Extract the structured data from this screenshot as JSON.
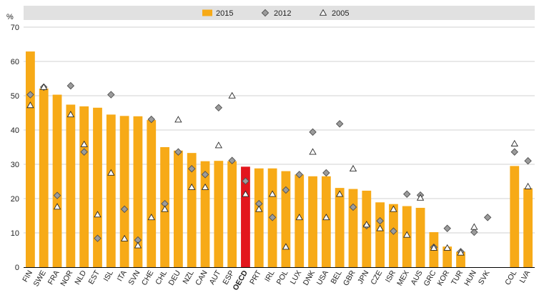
{
  "chart_data": {
    "type": "bar",
    "ylabel": "%",
    "ylim": [
      0,
      70
    ],
    "yticks": [
      "0",
      "10",
      "20",
      "30",
      "40",
      "50",
      "60",
      "70"
    ],
    "grid": true,
    "legend_position": "top",
    "categories": [
      "FIN",
      "SWE",
      "FRA",
      "NOR",
      "NLD",
      "EST",
      "ISL",
      "ITA",
      "SVN",
      "CHE",
      "CHL",
      "DEU",
      "NZL",
      "CAN",
      "AUT",
      "ESP",
      "OECD",
      "PRT",
      "IRL",
      "POL",
      "LUX",
      "DNK",
      "USA",
      "BEL",
      "GBR",
      "JPN",
      "CZE",
      "ISR",
      "MEX",
      "AUS",
      "GRC",
      "KOR",
      "TUR",
      "HUN",
      "SVK",
      "COL",
      "LVA"
    ],
    "highlight_category": "OECD",
    "gap_before": "COL",
    "series": [
      {
        "name": "2015",
        "mark": "bar",
        "values": [
          62.9,
          52.1,
          50.3,
          47.4,
          46.9,
          46.5,
          44.5,
          44.1,
          44.0,
          42.9,
          35.0,
          34.0,
          33.3,
          30.9,
          31.0,
          30.9,
          29.3,
          28.8,
          28.8,
          28.0,
          27.0,
          26.5,
          26.5,
          23.1,
          22.8,
          22.3,
          18.9,
          18.4,
          17.8,
          17.3,
          10.2,
          6.0,
          4.5,
          null,
          null,
          29.5,
          23.0
        ]
      },
      {
        "name": "2012",
        "mark": "diamond",
        "values": [
          50.3,
          52.5,
          20.9,
          52.9,
          33.6,
          8.4,
          50.3,
          16.9,
          7.9,
          43.1,
          18.5,
          33.6,
          28.7,
          27.0,
          46.5,
          31.1,
          25.1,
          18.5,
          14.5,
          22.5,
          27.0,
          39.4,
          27.5,
          41.8,
          17.5,
          12.1,
          13.5,
          10.5,
          21.3,
          21.0,
          5.8,
          11.3,
          4.5,
          10.2,
          14.5,
          33.6,
          31.0
        ]
      },
      {
        "name": "2005",
        "mark": "triangle",
        "values": [
          47.2,
          52.5,
          17.6,
          44.5,
          35.8,
          15.3,
          27.5,
          8.3,
          6.3,
          14.5,
          16.9,
          43.0,
          23.3,
          23.3,
          35.5,
          50.0,
          21.3,
          16.9,
          21.3,
          5.9,
          14.5,
          33.6,
          14.5,
          21.3,
          28.7,
          12.4,
          11.3,
          16.9,
          9.4,
          20.2,
          5.6,
          5.6,
          4.2,
          11.7,
          null,
          36.0,
          23.5
        ]
      }
    ],
    "colors": {
      "bar": "#F7AA17",
      "bar_highlight": "#E3161D",
      "diamond_fill": "#9B9B9B",
      "diamond_stroke": "#505050",
      "triangle_stroke": "#2A2A2A",
      "grid": "#d2d2d2",
      "legend_band": "#e1e1e1",
      "axis": "#000000"
    }
  }
}
